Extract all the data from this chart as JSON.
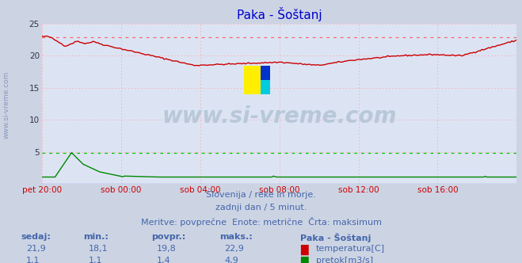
{
  "title": "Paka - Šoštanj",
  "bg_color": "#ccd4e4",
  "plot_bg_color": "#dce4f4",
  "grid_color_h": "#ffaaaa",
  "grid_color_v": "#ffaaaa",
  "temp_color": "#cc0000",
  "flow_color": "#008800",
  "level_color": "#0000cc",
  "temp_max_color": "#ff6666",
  "flow_max_color": "#00cc00",
  "xlabel_color": "#cc0000",
  "text_color": "#4466aa",
  "title_color": "#0000cc",
  "side_label_color": "#8899bb",
  "watermark_color": "#b8c8d8",
  "ylim_min": 0,
  "ylim_max": 25,
  "ytick_vals": [
    5,
    10,
    15,
    20,
    25
  ],
  "xlim_min": 0,
  "xlim_max": 288,
  "x_tick_positions": [
    0,
    48,
    96,
    144,
    192,
    240
  ],
  "x_tick_labels": [
    "pet 20:00",
    "sob 00:00",
    "sob 04:00",
    "sob 08:00",
    "sob 12:00",
    "sob 16:00"
  ],
  "temp_max": 22.9,
  "flow_max": 4.9,
  "subtitle1": "Slovenija / reke in morje.",
  "subtitle2": "zadnji dan / 5 minut.",
  "subtitle3": "Meritve: povprečne  Enote: metrične  Črta: maksimum",
  "table_headers": [
    "sedaj:",
    "min.:",
    "povpr.:",
    "maks.:"
  ],
  "table_temp_vals": [
    "21,9",
    "18,1",
    "19,8",
    "22,9"
  ],
  "table_flow_vals": [
    "1,1",
    "1,1",
    "1,4",
    "4,9"
  ],
  "legend_title": "Paka - Šoštanj",
  "legend_temp": "temperatura[C]",
  "legend_flow": "pretok[m3/s]",
  "watermark": "www.si-vreme.com",
  "side_label": "www.si-vreme.com"
}
